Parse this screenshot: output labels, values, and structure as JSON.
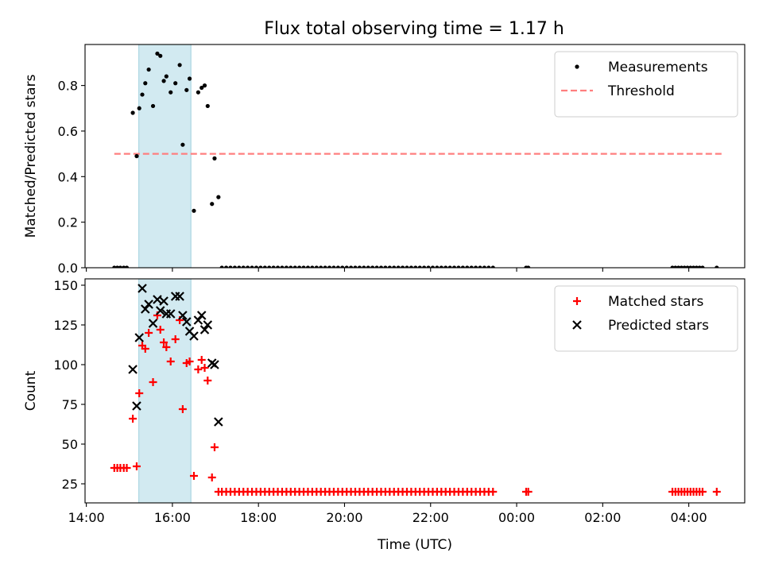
{
  "title": "Flux total observing time = 1.17 h",
  "colors": {
    "measurement": "#000000",
    "threshold": "#ff7f7f",
    "matched": "#ff0000",
    "predicted": "#000000",
    "span": "#add8e6"
  },
  "chart_data": [
    {
      "type": "scatter",
      "ylabel": "Matched/Predicted stars",
      "ylim": [
        0,
        0.98
      ],
      "yticks": [
        0.0,
        0.2,
        0.4,
        0.6,
        0.8
      ],
      "ytick_labels": [
        "0.0",
        "0.2",
        "0.4",
        "0.6",
        "0.8"
      ],
      "legend_position": "upper right",
      "shaded_span": [
        15.22,
        16.43
      ],
      "threshold": {
        "name": "Threshold",
        "y": 0.5,
        "x_range": [
          14.65,
          28.8
        ]
      },
      "series": [
        {
          "name": "Measurements",
          "marker": "dot",
          "x": [
            14.65,
            14.72,
            14.79,
            14.87,
            14.94,
            15.08,
            15.17,
            15.23,
            15.3,
            15.37,
            15.45,
            15.55,
            15.65,
            15.72,
            15.8,
            15.86,
            15.96,
            16.07,
            16.17,
            16.24,
            16.33,
            16.4,
            16.5,
            16.6,
            16.68,
            16.75,
            16.82,
            16.92,
            16.98,
            17.07,
            17.15,
            17.25,
            17.35,
            17.45,
            17.55,
            17.65,
            17.75,
            17.85,
            17.95,
            18.05,
            18.15,
            18.25,
            18.35,
            18.45,
            18.55,
            18.65,
            18.75,
            18.85,
            18.95,
            19.05,
            19.15,
            19.25,
            19.35,
            19.45,
            19.55,
            19.65,
            19.75,
            19.85,
            19.95,
            20.05,
            20.15,
            20.25,
            20.35,
            20.45,
            20.55,
            20.65,
            20.75,
            20.85,
            20.95,
            21.05,
            21.15,
            21.25,
            21.35,
            21.45,
            21.55,
            21.65,
            21.75,
            21.85,
            21.95,
            22.05,
            22.15,
            22.25,
            22.35,
            22.45,
            22.55,
            22.65,
            22.75,
            22.85,
            22.95,
            23.05,
            23.15,
            23.25,
            23.35,
            23.45,
            24.22,
            24.27,
            27.62,
            27.69,
            27.76,
            27.83,
            27.9,
            27.97,
            28.04,
            28.11,
            28.18,
            28.25,
            28.32,
            28.65
          ],
          "y": [
            0,
            0,
            0,
            0,
            0,
            0.68,
            0.49,
            0.7,
            0.76,
            0.81,
            0.87,
            0.71,
            0.94,
            0.93,
            0.82,
            0.84,
            0.77,
            0.81,
            0.89,
            0.54,
            0.78,
            0.83,
            0.25,
            0.77,
            0.79,
            0.8,
            0.71,
            0.28,
            0.48,
            0.31,
            0,
            0,
            0,
            0,
            0,
            0,
            0,
            0,
            0,
            0,
            0,
            0,
            0,
            0,
            0,
            0,
            0,
            0,
            0,
            0,
            0,
            0,
            0,
            0,
            0,
            0,
            0,
            0,
            0,
            0,
            0,
            0,
            0,
            0,
            0,
            0,
            0,
            0,
            0,
            0,
            0,
            0,
            0,
            0,
            0,
            0,
            0,
            0,
            0,
            0,
            0,
            0,
            0,
            0,
            0,
            0,
            0,
            0,
            0,
            0,
            0,
            0,
            0,
            0,
            0,
            0,
            0,
            0,
            0,
            0,
            0,
            0,
            0,
            0,
            0,
            0,
            0,
            0
          ]
        }
      ]
    },
    {
      "type": "scatter",
      "ylabel": "Count",
      "xlabel": "Time (UTC)",
      "ylim": [
        13,
        154
      ],
      "yticks": [
        25,
        50,
        75,
        100,
        125,
        150
      ],
      "ytick_labels": [
        "25",
        "50",
        "75",
        "100",
        "125",
        "150"
      ],
      "xlim": [
        13.97,
        29.3
      ],
      "xticks": [
        14,
        16,
        18,
        20,
        22,
        24,
        26,
        28
      ],
      "xtick_labels": [
        "14:00",
        "16:00",
        "18:00",
        "20:00",
        "22:00",
        "00:00",
        "02:00",
        "04:00"
      ],
      "legend_position": "upper right",
      "shaded_span": [
        15.22,
        16.43
      ],
      "series": [
        {
          "name": "Matched stars",
          "marker": "plus",
          "x": [
            14.65,
            14.72,
            14.79,
            14.87,
            14.94,
            15.08,
            15.17,
            15.23,
            15.3,
            15.37,
            15.45,
            15.55,
            15.65,
            15.72,
            15.8,
            15.86,
            15.96,
            16.07,
            16.17,
            16.24,
            16.33,
            16.4,
            16.5,
            16.6,
            16.68,
            16.75,
            16.82,
            16.92,
            16.98,
            17.07,
            17.15,
            17.25,
            17.35,
            17.45,
            17.55,
            17.65,
            17.75,
            17.85,
            17.95,
            18.05,
            18.15,
            18.25,
            18.35,
            18.45,
            18.55,
            18.65,
            18.75,
            18.85,
            18.95,
            19.05,
            19.15,
            19.25,
            19.35,
            19.45,
            19.55,
            19.65,
            19.75,
            19.85,
            19.95,
            20.05,
            20.15,
            20.25,
            20.35,
            20.45,
            20.55,
            20.65,
            20.75,
            20.85,
            20.95,
            21.05,
            21.15,
            21.25,
            21.35,
            21.45,
            21.55,
            21.65,
            21.75,
            21.85,
            21.95,
            22.05,
            22.15,
            22.25,
            22.35,
            22.45,
            22.55,
            22.65,
            22.75,
            22.85,
            22.95,
            23.05,
            23.15,
            23.25,
            23.35,
            23.45,
            24.22,
            24.27,
            27.62,
            27.69,
            27.76,
            27.83,
            27.9,
            27.97,
            28.04,
            28.11,
            28.18,
            28.25,
            28.32,
            28.65
          ],
          "y": [
            35,
            35,
            35,
            35,
            35,
            66,
            36,
            82,
            112,
            110,
            120,
            89,
            131,
            122,
            114,
            111,
            102,
            116,
            128,
            72,
            101,
            102,
            30,
            97,
            103,
            98,
            90,
            29,
            48,
            20,
            20,
            20,
            20,
            20,
            20,
            20,
            20,
            20,
            20,
            20,
            20,
            20,
            20,
            20,
            20,
            20,
            20,
            20,
            20,
            20,
            20,
            20,
            20,
            20,
            20,
            20,
            20,
            20,
            20,
            20,
            20,
            20,
            20,
            20,
            20,
            20,
            20,
            20,
            20,
            20,
            20,
            20,
            20,
            20,
            20,
            20,
            20,
            20,
            20,
            20,
            20,
            20,
            20,
            20,
            20,
            20,
            20,
            20,
            20,
            20,
            20,
            20,
            20,
            20,
            20,
            20,
            20,
            20,
            20,
            20,
            20,
            20,
            20,
            20,
            20,
            20,
            20,
            20
          ]
        },
        {
          "name": "Predicted stars",
          "marker": "x",
          "x": [
            15.08,
            15.17,
            15.23,
            15.3,
            15.37,
            15.45,
            15.55,
            15.65,
            15.72,
            15.8,
            15.86,
            15.96,
            16.07,
            16.17,
            16.24,
            16.33,
            16.4,
            16.5,
            16.6,
            16.68,
            16.75,
            16.82,
            16.92,
            16.98,
            17.07
          ],
          "y": [
            97,
            74,
            117,
            148,
            135,
            138,
            126,
            141,
            134,
            140,
            132,
            132,
            143,
            143,
            131,
            127,
            121,
            118,
            128,
            131,
            122,
            125,
            101,
            100,
            64
          ]
        }
      ]
    }
  ]
}
